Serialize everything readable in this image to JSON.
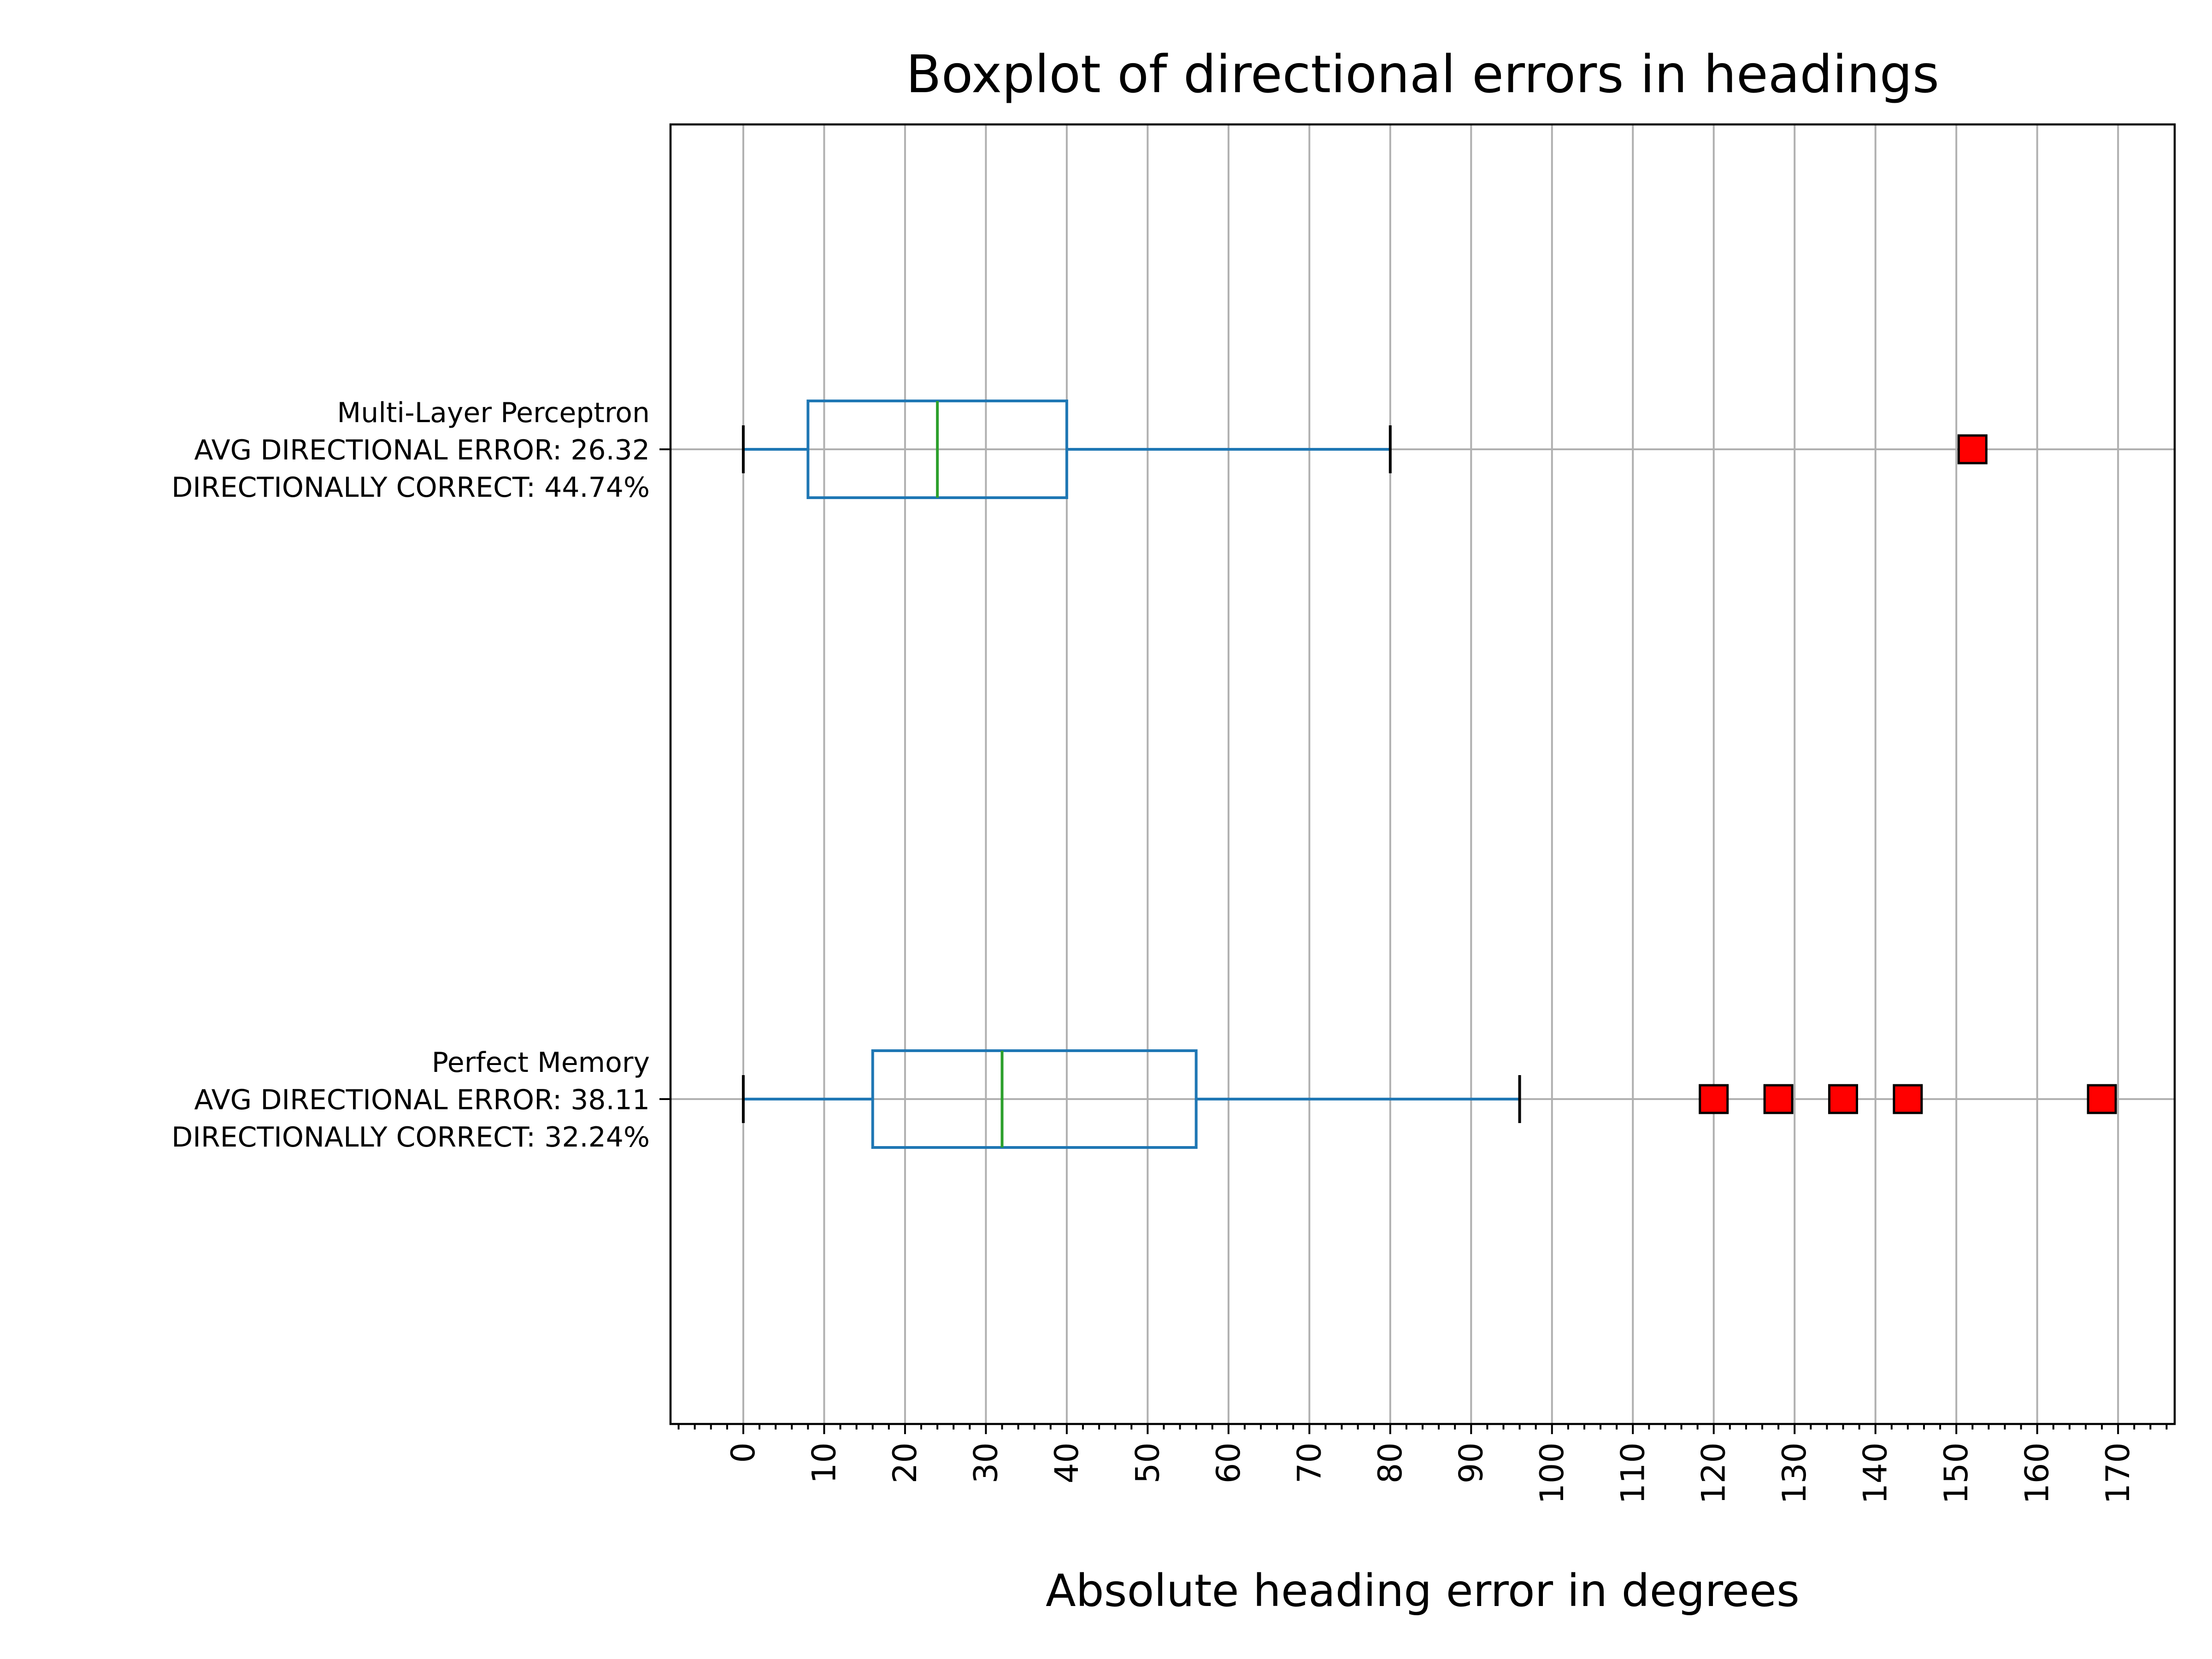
{
  "chart_data": {
    "type": "boxplot",
    "orientation": "horizontal",
    "title": "Boxplot of directional errors in headings",
    "xlabel": "Absolute heading error in degrees",
    "ylabel": "",
    "xlim": [
      -9,
      177
    ],
    "x_major_ticks": [
      0,
      10,
      20,
      30,
      40,
      50,
      60,
      70,
      80,
      90,
      100,
      110,
      120,
      130,
      140,
      150,
      160,
      170
    ],
    "x_minor_tick_step": 2,
    "x_tick_rotation": 90,
    "grid": true,
    "legend": "none",
    "colors": {
      "box": "#1f77b4",
      "median": "#2ca02c",
      "cap": "#000000",
      "outlier_fill": "#ff0000",
      "outlier_edge": "#000000",
      "grid": "#b0b0b0"
    },
    "series": [
      {
        "label_lines": [
          "Multi-Layer Perceptron",
          "AVG DIRECTIONAL ERROR: 26.32",
          "DIRECTIONALLY CORRECT: 44.74%"
        ],
        "whisker_low": 0,
        "q1": 8,
        "median": 24,
        "q3": 40,
        "whisker_high": 80,
        "outliers": [
          152
        ]
      },
      {
        "label_lines": [
          "Perfect Memory",
          "AVG DIRECTIONAL ERROR: 38.11",
          "DIRECTIONALLY CORRECT: 32.24%"
        ],
        "whisker_low": 0,
        "q1": 16,
        "median": 32,
        "q3": 56,
        "whisker_high": 96,
        "outliers": [
          120,
          128,
          136,
          144,
          168
        ]
      }
    ]
  }
}
